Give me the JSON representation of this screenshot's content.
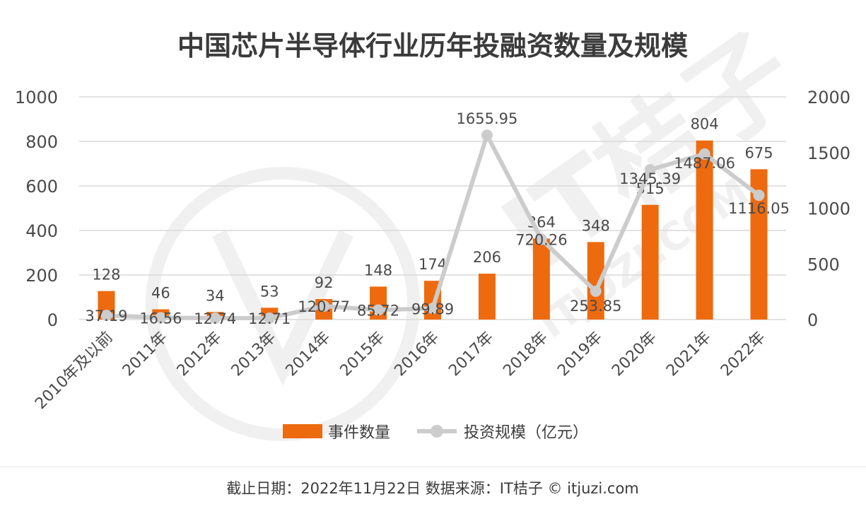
{
  "chart_data": {
    "type": "bar+line",
    "title": "中国芯片半导体行业历年投融资数量及规模",
    "categories": [
      "2010年及以前",
      "2011年",
      "2012年",
      "2013年",
      "2014年",
      "2015年",
      "2016年",
      "2017年",
      "2018年",
      "2019年",
      "2020年",
      "2021年",
      "2022年"
    ],
    "series": [
      {
        "name": "事件数量",
        "type": "bar",
        "axis": "left",
        "color": "#ee6a0e",
        "values": [
          128,
          46,
          34,
          53,
          92,
          148,
          174,
          206,
          364,
          348,
          515,
          804,
          675
        ]
      },
      {
        "name": "投资规模（亿元）",
        "type": "line",
        "axis": "right",
        "color": "#cccccc",
        "values": [
          37.19,
          16.56,
          12.74,
          12.71,
          120.77,
          85.72,
          99.89,
          1655.95,
          720.26,
          253.85,
          1345.39,
          1487.06,
          1116.05
        ],
        "labels": [
          "37.19",
          "16.56",
          "12.74",
          "12.71",
          "120.77",
          "85.72",
          "99.89",
          "1655.95",
          "720.26",
          "253.85",
          "1345.39",
          "1487.06",
          "1116.05"
        ]
      }
    ],
    "y_left": {
      "min": 0,
      "max": 1000,
      "ticks": [
        "0",
        "200",
        "400",
        "600",
        "800",
        "1000"
      ]
    },
    "y_right": {
      "min": 0,
      "max": 2000,
      "ticks": [
        "0",
        "500",
        "1000",
        "1500",
        "2000"
      ]
    },
    "grid": true,
    "legend_position": "bottom"
  },
  "footer": {
    "text": "截止日期：2022年11月22日    数据来源：IT桔子 © itjuzi.com"
  },
  "watermark": {
    "text": "IT桔子",
    "subtext": "ITJUZI.COM"
  }
}
